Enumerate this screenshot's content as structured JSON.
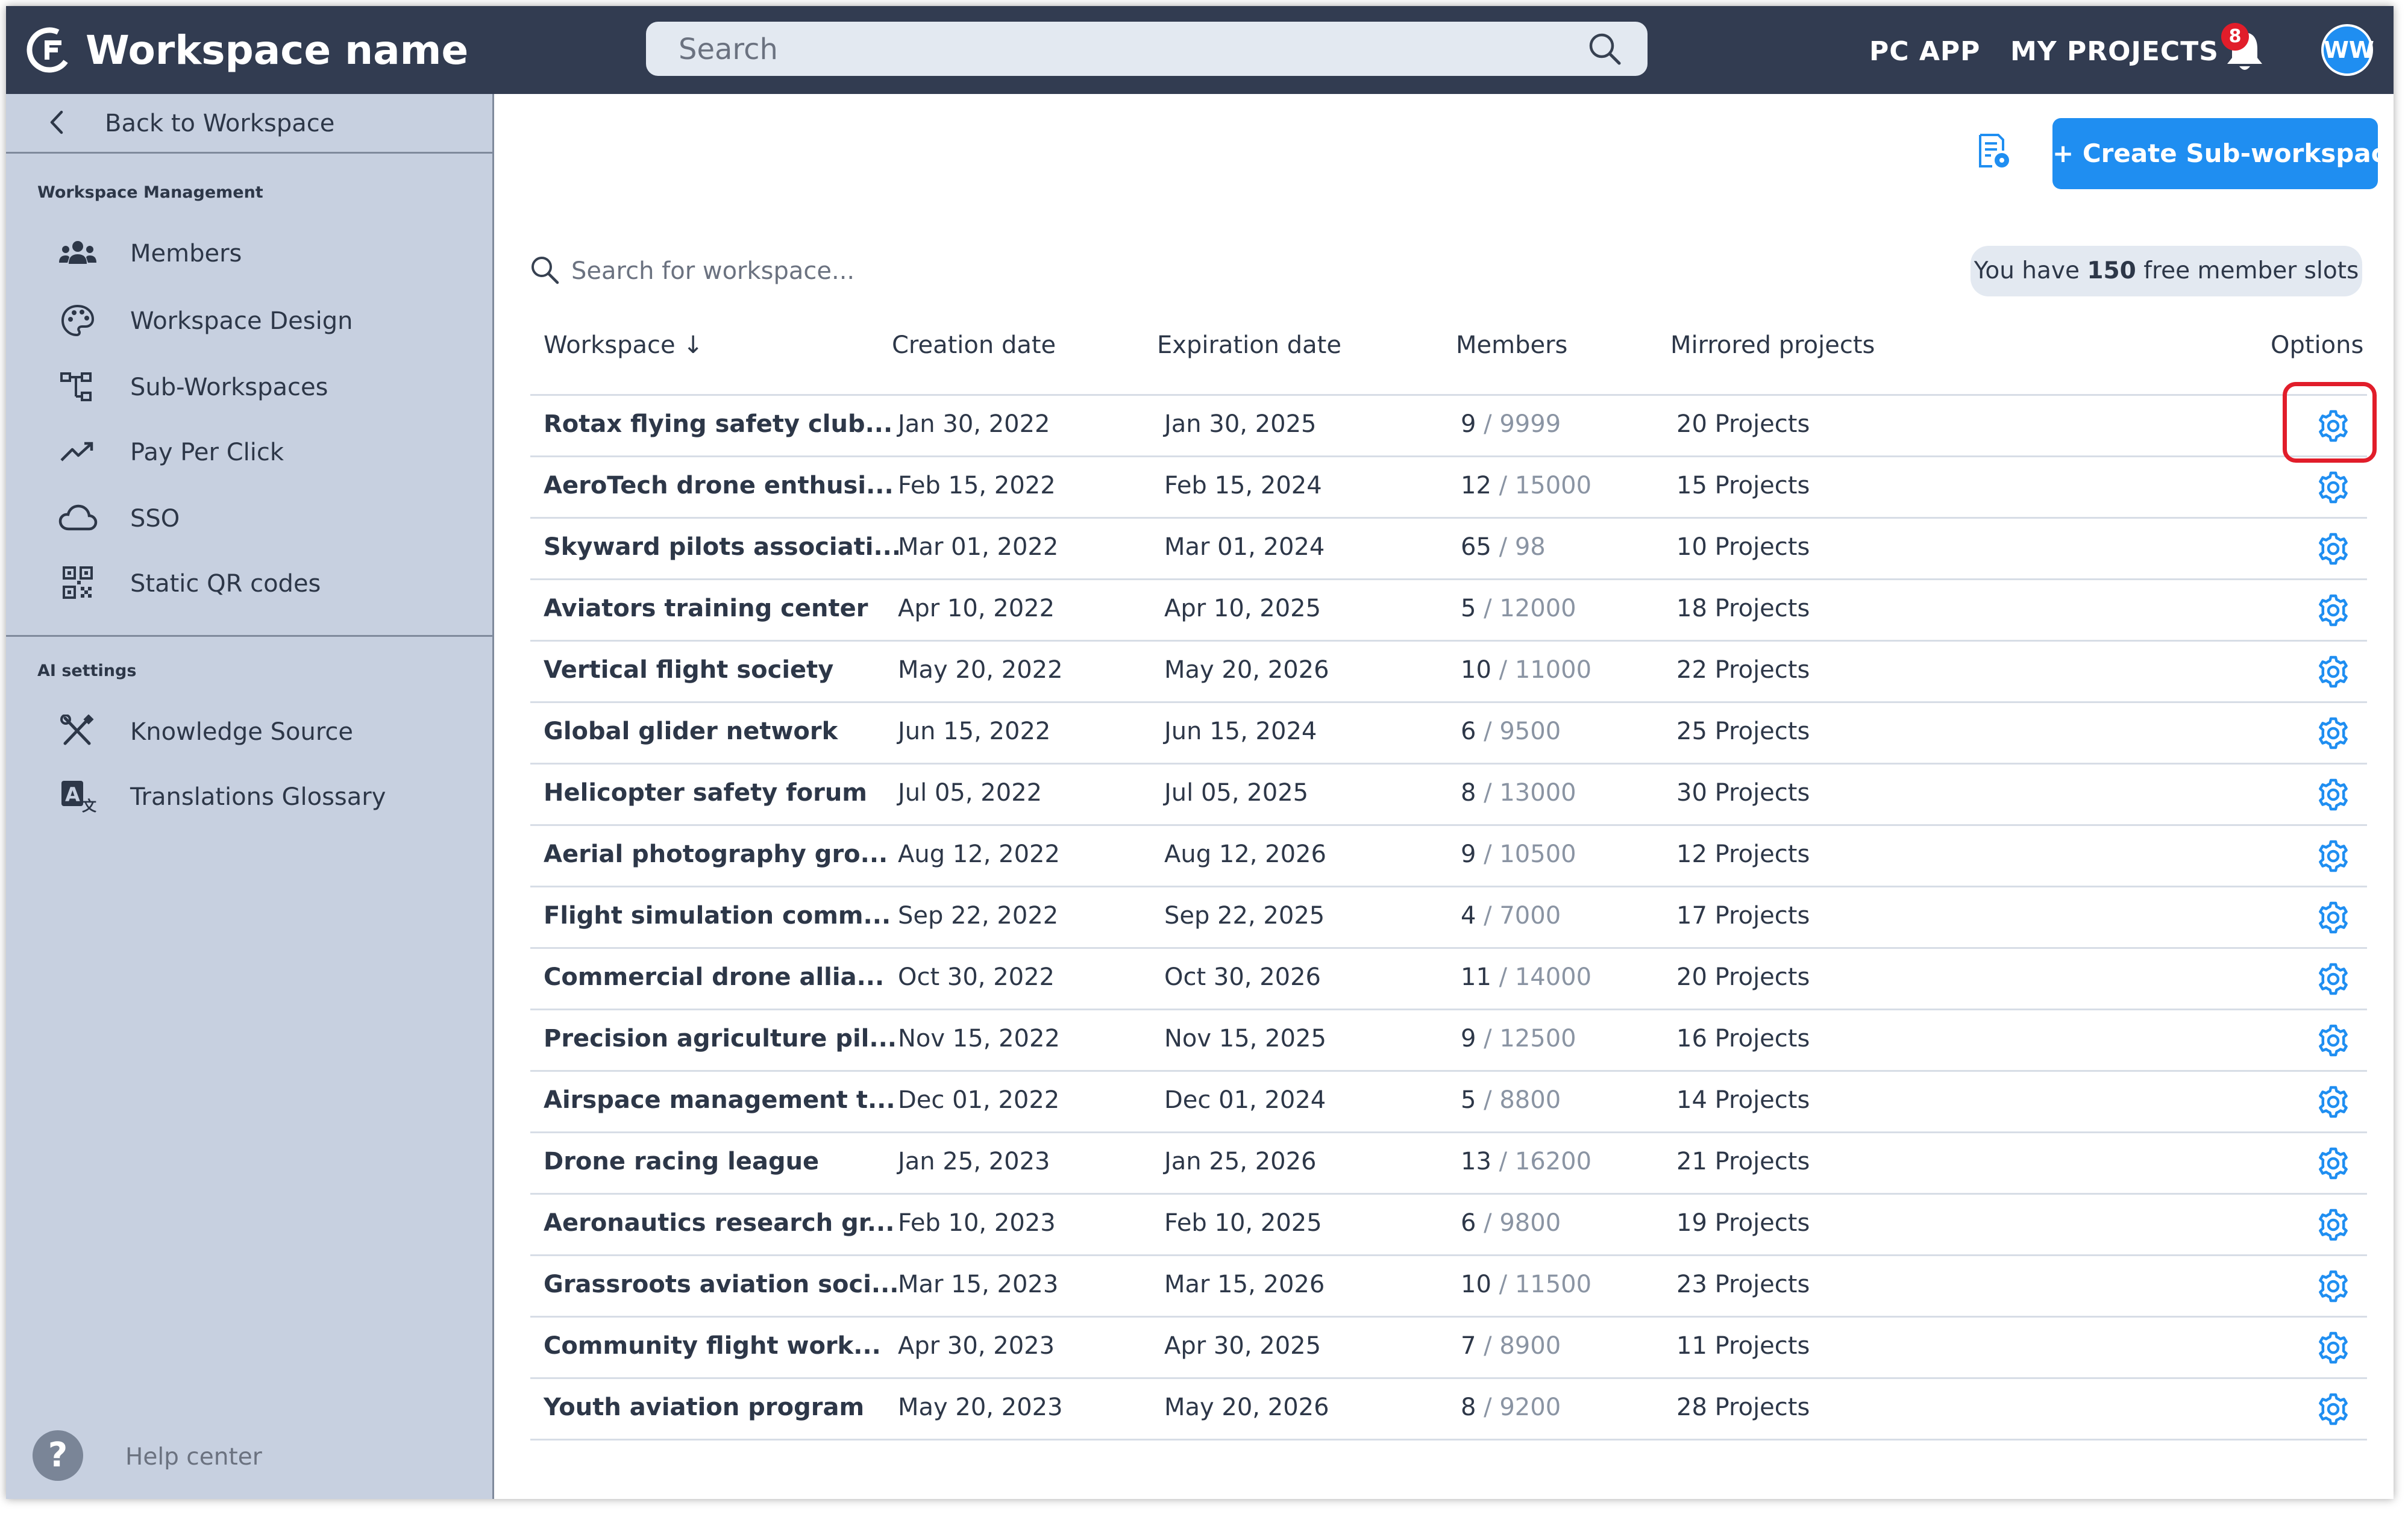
{
  "header": {
    "workspace_name": "Workspace name",
    "search_placeholder": "Search",
    "pc_app_label": "PC APP",
    "my_projects_label": "MY PROJECTS",
    "notification_count": "8",
    "avatar_initials": "WW"
  },
  "sidebar": {
    "back_label": "Back to Workspace",
    "section_management": "Workspace Management",
    "section_ai": "AI settings",
    "items": [
      {
        "label": "Members",
        "icon": "members-icon"
      },
      {
        "label": "Workspace Design",
        "icon": "palette-icon"
      },
      {
        "label": "Sub-Workspaces",
        "icon": "hierarchy-icon"
      },
      {
        "label": "Pay Per Click",
        "icon": "trend-icon"
      },
      {
        "label": "SSO",
        "icon": "cloud-icon"
      },
      {
        "label": "Static QR codes",
        "icon": "qr-code-icon"
      }
    ],
    "ai_items": [
      {
        "label": "Knowledge Source",
        "icon": "tools-icon"
      },
      {
        "label": "Translations Glossary",
        "icon": "translate-icon"
      }
    ],
    "help_label": "Help center",
    "help_glyph": "?"
  },
  "main": {
    "create_button_label": "+ Create Sub-workspace",
    "search_placeholder": "Search for workspace...",
    "slots_prefix": "You have ",
    "slots_count": "150",
    "slots_suffix": " free member slots",
    "columns": {
      "workspace": "Workspace",
      "sort_glyph": "↓",
      "creation": "Creation date",
      "expiration": "Expiration date",
      "members": "Members",
      "mirrored": "Mirrored projects",
      "options": "Options"
    },
    "rows": [
      {
        "name": "Rotax flying safety club...",
        "created": "Jan 30, 2022",
        "expires": "Jan 30, 2025",
        "members": "9",
        "limit": "9999",
        "projects": "20 Projects"
      },
      {
        "name": "AeroTech drone enthusi...",
        "created": "Feb 15, 2022",
        "expires": "Feb 15, 2024",
        "members": "12",
        "limit": "15000",
        "projects": "15 Projects"
      },
      {
        "name": "Skyward pilots associati...",
        "created": "Mar 01, 2022",
        "expires": "Mar 01, 2024",
        "members": "65",
        "limit": "98",
        "projects": "10 Projects"
      },
      {
        "name": "Aviators training center",
        "created": "Apr 10, 2022",
        "expires": "Apr 10, 2025",
        "members": "5",
        "limit": "12000",
        "projects": "18 Projects"
      },
      {
        "name": "Vertical flight society",
        "created": "May 20, 2022",
        "expires": "May 20, 2026",
        "members": "10",
        "limit": "11000",
        "projects": "22 Projects"
      },
      {
        "name": "Global glider network",
        "created": "Jun 15, 2022",
        "expires": "Jun 15, 2024",
        "members": "6",
        "limit": "9500",
        "projects": "25 Projects"
      },
      {
        "name": "Helicopter safety forum",
        "created": "Jul 05, 2022",
        "expires": "Jul 05, 2025",
        "members": "8",
        "limit": "13000",
        "projects": "30 Projects"
      },
      {
        "name": "Aerial photography gro...",
        "created": "Aug 12, 2022",
        "expires": "Aug 12, 2026",
        "members": "9",
        "limit": "10500",
        "projects": "12 Projects"
      },
      {
        "name": "Flight simulation comm...",
        "created": "Sep 22, 2022",
        "expires": "Sep 22, 2025",
        "members": "4",
        "limit": "7000",
        "projects": "17 Projects"
      },
      {
        "name": "Commercial drone allia...",
        "created": "Oct 30, 2022",
        "expires": "Oct 30, 2026",
        "members": "11",
        "limit": "14000",
        "projects": "20 Projects"
      },
      {
        "name": "Precision agriculture pil...",
        "created": "Nov 15, 2022",
        "expires": "Nov 15, 2025",
        "members": "9",
        "limit": "12500",
        "projects": "16 Projects"
      },
      {
        "name": "Airspace management t...",
        "created": "Dec 01, 2022",
        "expires": "Dec 01, 2024",
        "members": "5",
        "limit": "8800",
        "projects": "14 Projects"
      },
      {
        "name": "Drone racing league",
        "created": "Jan 25, 2023",
        "expires": "Jan 25, 2026",
        "members": "13",
        "limit": "16200",
        "projects": "21 Projects"
      },
      {
        "name": "Aeronautics research gr...",
        "created": "Feb 10, 2023",
        "expires": "Feb 10, 2025",
        "members": "6",
        "limit": "9800",
        "projects": "19 Projects"
      },
      {
        "name": "Grassroots aviation soci...",
        "created": "Mar 15, 2023",
        "expires": "Mar 15, 2026",
        "members": "10",
        "limit": "11500",
        "projects": "23 Projects"
      },
      {
        "name": "Community flight work...",
        "created": "Apr 30, 2023",
        "expires": "Apr 30, 2025",
        "members": "7",
        "limit": "8900",
        "projects": "11 Projects"
      },
      {
        "name": "Youth aviation program",
        "created": "May 20, 2023",
        "expires": "May 20, 2026",
        "members": "8",
        "limit": "9200",
        "projects": "28 Projects"
      }
    ]
  },
  "colors": {
    "topbar": "#323c51",
    "sidebar": "#c7d0e0",
    "accent": "#1f8ef1",
    "highlight": "#e11d2a"
  }
}
